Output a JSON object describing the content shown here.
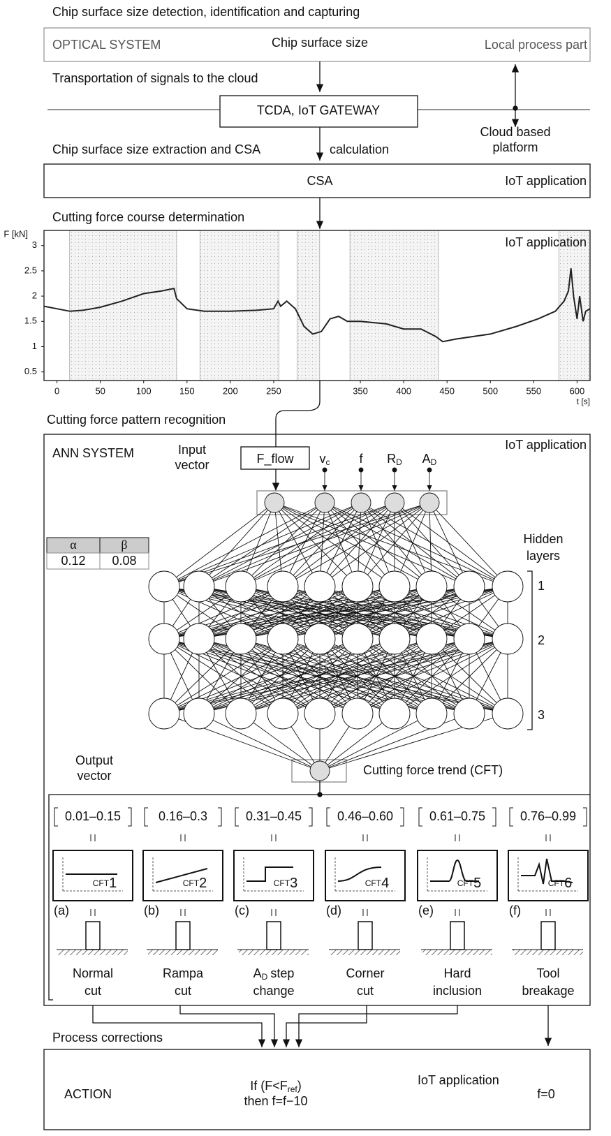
{
  "header": {
    "title": "Chip surface size detection, identification and capturing"
  },
  "optical": {
    "label": "OPTICAL SYSTEM",
    "signal": "Chip surface size",
    "side": "Local process part"
  },
  "transport": {
    "title": "Transportation of signals to the cloud",
    "gateway": "TCDA, IoT GATEWAY",
    "side": [
      "Cloud based",
      "platform"
    ]
  },
  "extraction": {
    "title": [
      "Chip surface size extraction and CSA",
      "calculation"
    ],
    "box": "CSA",
    "side": "IoT application"
  },
  "force": {
    "type": "line",
    "title": "Cutting force course determination",
    "side": "IoT application",
    "y_label": "F [kN]",
    "x_label": "t [s]",
    "color": "#222222",
    "xlim": [
      -15,
      615
    ],
    "ylim": [
      0.33,
      3.3
    ],
    "xticks": [
      0,
      50,
      100,
      150,
      200,
      250,
      350,
      400,
      450,
      500,
      550,
      600
    ],
    "yticks": [
      0.5,
      1,
      1.5,
      2,
      2.5,
      3
    ],
    "shaded": [
      [
        14.5,
        138
      ],
      [
        165,
        256
      ],
      [
        277,
        303
      ],
      [
        338,
        440
      ],
      [
        579,
        615
      ]
    ],
    "x": [
      -15,
      0,
      15,
      30,
      50,
      75,
      100,
      120,
      135,
      138,
      150,
      170,
      200,
      230,
      250,
      255,
      258,
      265,
      275,
      285,
      295,
      305,
      315,
      325,
      335,
      350,
      380,
      400,
      420,
      437,
      445,
      460,
      500,
      530,
      555,
      575,
      585,
      590,
      593,
      596,
      600,
      603,
      607,
      610,
      615
    ],
    "values": [
      1.8,
      1.75,
      1.7,
      1.72,
      1.78,
      1.9,
      2.05,
      2.1,
      2.15,
      1.95,
      1.75,
      1.7,
      1.7,
      1.72,
      1.75,
      1.9,
      1.8,
      1.9,
      1.75,
      1.4,
      1.25,
      1.3,
      1.55,
      1.6,
      1.5,
      1.5,
      1.45,
      1.35,
      1.35,
      1.2,
      1.1,
      1.15,
      1.25,
      1.4,
      1.55,
      1.7,
      1.9,
      2.1,
      2.55,
      2.0,
      1.55,
      2.0,
      1.5,
      1.7,
      1.75
    ]
  },
  "recognition": {
    "title": "Cutting force pattern recognition"
  },
  "ann": {
    "label": "ANN SYSTEM",
    "side": "IoT application",
    "input_label": [
      "Input",
      "vector"
    ],
    "inputs": [
      {
        "base": "F_flow"
      },
      {
        "base": "v",
        "sub": "c"
      },
      {
        "base": "f"
      },
      {
        "base": "R",
        "sub": "D"
      },
      {
        "base": "A",
        "sub": "D"
      }
    ],
    "hidden_label": [
      "Hidden",
      "layers"
    ],
    "layers": [
      "1",
      "2",
      "3"
    ],
    "table": {
      "header": [
        "α",
        "β"
      ],
      "rows": [
        [
          "0.12",
          "0.08"
        ]
      ]
    },
    "output_label": [
      "Output",
      "vector"
    ],
    "output": "Cutting force trend (CFT)"
  },
  "classes": [
    {
      "range": "0.01–0.15",
      "letter": "(a)",
      "cft": "CFT",
      "num": "1",
      "name": [
        "Normal",
        "cut"
      ]
    },
    {
      "range": "0.16–0.3",
      "letter": "(b)",
      "cft": "CFT",
      "num": "2",
      "name": [
        "Rampa",
        "cut"
      ]
    },
    {
      "range": "0.31–0.45",
      "letter": "(c)",
      "cft": "CFT",
      "num": "3",
      "name": [
        {
          "base": "A",
          "sub": "D",
          "text": "step"
        },
        "change"
      ]
    },
    {
      "range": "0.46–0.60",
      "letter": "(d)",
      "cft": "CFT",
      "num": "4",
      "name": [
        "Corner",
        "cut"
      ]
    },
    {
      "range": "0.61–0.75",
      "letter": "(e)",
      "cft": "CFT",
      "num": "5",
      "name": [
        "Hard",
        "inclusion"
      ]
    },
    {
      "range": "0.76–0.99",
      "letter": "(f)",
      "cft": "CFT",
      "num": "6",
      "name": [
        "Tool",
        "breakage"
      ]
    }
  ],
  "action": {
    "title": "Process corrections",
    "label": "ACTION",
    "condition": {
      "pre": "If (F<F",
      "sub": "ref",
      "post": ")"
    },
    "then": "then f=f−10",
    "side": "IoT application",
    "stop": "f=0"
  }
}
